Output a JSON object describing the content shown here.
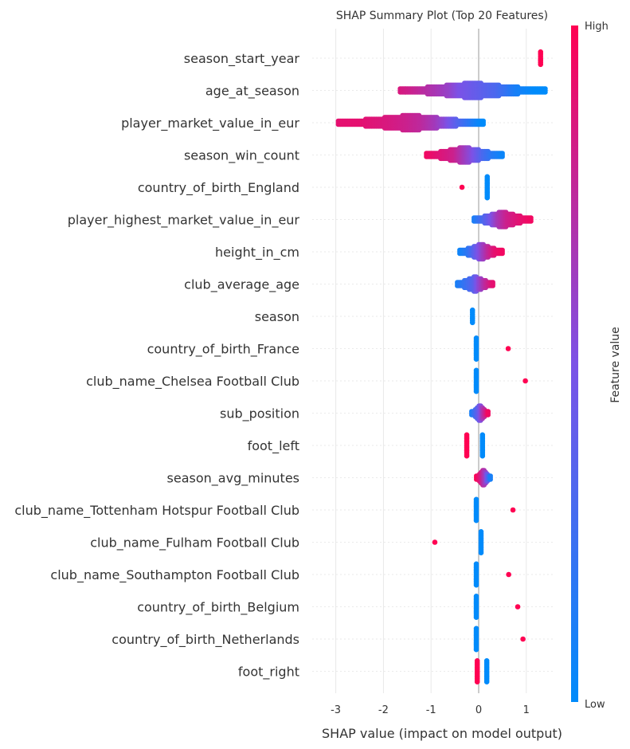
{
  "chart_data": {
    "type": "scatter",
    "title": "SHAP Summary Plot (Top 20 Features)",
    "xlabel": "SHAP value (impact on model output)",
    "xlim": [
      -3.2,
      1.6
    ],
    "xticks": [
      -3,
      -2,
      -1,
      0,
      1
    ],
    "colorbar": {
      "label": "Feature value",
      "high": "High",
      "low": "Low",
      "high_color": "#ff0052",
      "low_color": "#008bfb"
    },
    "features": [
      {
        "name": "season_start_year",
        "points": [
          [
            1.3,
            1.0
          ]
        ]
      },
      {
        "name": "age_at_season",
        "points": [
          [
            -1.65,
            0.85
          ],
          [
            -1.4,
            0.8
          ],
          [
            -1.2,
            0.75
          ],
          [
            -1.0,
            0.7
          ],
          [
            -0.8,
            0.65
          ],
          [
            -0.6,
            0.6
          ],
          [
            -0.4,
            0.5
          ],
          [
            -0.2,
            0.45
          ],
          [
            0.0,
            0.4
          ],
          [
            0.2,
            0.35
          ],
          [
            0.4,
            0.3
          ],
          [
            0.6,
            0.2
          ],
          [
            0.8,
            0.1
          ],
          [
            1.0,
            0.05
          ],
          [
            1.2,
            0.0
          ],
          [
            1.4,
            0.0
          ]
        ]
      },
      {
        "name": "player_market_value_in_eur",
        "points": [
          [
            -2.95,
            0.9
          ],
          [
            -2.5,
            0.9
          ],
          [
            -1.9,
            0.85
          ],
          [
            -1.5,
            0.8
          ],
          [
            -1.2,
            0.75
          ],
          [
            -0.9,
            0.65
          ],
          [
            -0.7,
            0.55
          ],
          [
            -0.5,
            0.4
          ],
          [
            -0.3,
            0.25
          ],
          [
            -0.15,
            0.15
          ],
          [
            0.0,
            0.05
          ],
          [
            0.1,
            0.0
          ]
        ]
      },
      {
        "name": "season_win_count",
        "points": [
          [
            -1.1,
            0.95
          ],
          [
            -0.9,
            0.9
          ],
          [
            -0.7,
            0.85
          ],
          [
            -0.5,
            0.8
          ],
          [
            -0.3,
            0.65
          ],
          [
            -0.1,
            0.5
          ],
          [
            0.1,
            0.3
          ],
          [
            0.3,
            0.15
          ],
          [
            0.5,
            0.05
          ]
        ]
      },
      {
        "name": "country_of_birth_England",
        "points": [
          [
            -0.35,
            1.0
          ],
          [
            0.18,
            0.0
          ]
        ]
      },
      {
        "name": "player_highest_market_value_in_eur",
        "points": [
          [
            -0.1,
            0.1
          ],
          [
            0.0,
            0.2
          ],
          [
            0.2,
            0.4
          ],
          [
            0.4,
            0.65
          ],
          [
            0.6,
            0.8
          ],
          [
            0.9,
            0.9
          ],
          [
            1.1,
            0.95
          ]
        ]
      },
      {
        "name": "height_in_cm",
        "points": [
          [
            -0.4,
            0.05
          ],
          [
            -0.2,
            0.2
          ],
          [
            0.0,
            0.5
          ],
          [
            0.2,
            0.75
          ],
          [
            0.35,
            0.9
          ],
          [
            0.5,
            0.95
          ]
        ]
      },
      {
        "name": "club_average_age",
        "points": [
          [
            -0.45,
            0.1
          ],
          [
            -0.3,
            0.2
          ],
          [
            -0.1,
            0.35
          ],
          [
            0.0,
            0.55
          ],
          [
            0.15,
            0.75
          ],
          [
            0.3,
            0.9
          ]
        ]
      },
      {
        "name": "season",
        "points": [
          [
            -0.13,
            0.0
          ]
        ]
      },
      {
        "name": "country_of_birth_France",
        "points": [
          [
            -0.05,
            0.0
          ],
          [
            0.62,
            1.0
          ]
        ]
      },
      {
        "name": "club_name_Chelsea Football Club",
        "points": [
          [
            -0.05,
            0.0
          ],
          [
            0.98,
            1.0
          ]
        ]
      },
      {
        "name": "sub_position",
        "points": [
          [
            -0.15,
            0.1
          ],
          [
            0.0,
            0.4
          ],
          [
            0.1,
            0.7
          ],
          [
            0.2,
            0.95
          ]
        ]
      },
      {
        "name": "foot_left",
        "points": [
          [
            -0.25,
            1.0
          ],
          [
            0.08,
            0.0
          ]
        ]
      },
      {
        "name": "season_avg_minutes",
        "points": [
          [
            -0.05,
            1.0
          ],
          [
            0.05,
            0.85
          ],
          [
            0.15,
            0.6
          ],
          [
            0.25,
            0.1
          ]
        ]
      },
      {
        "name": "club_name_Tottenham Hotspur Football Club",
        "points": [
          [
            -0.05,
            0.0
          ],
          [
            0.72,
            1.0
          ]
        ]
      },
      {
        "name": "club_name_Fulham Football Club",
        "points": [
          [
            -0.92,
            1.0
          ],
          [
            0.05,
            0.0
          ]
        ]
      },
      {
        "name": "club_name_Southampton Football Club",
        "points": [
          [
            -0.05,
            0.0
          ],
          [
            0.63,
            1.0
          ]
        ]
      },
      {
        "name": "country_of_birth_Belgium",
        "points": [
          [
            -0.05,
            0.0
          ],
          [
            0.82,
            1.0
          ]
        ]
      },
      {
        "name": "country_of_birth_Netherlands",
        "points": [
          [
            -0.05,
            0.0
          ],
          [
            0.93,
            1.0
          ]
        ]
      },
      {
        "name": "foot_right",
        "points": [
          [
            -0.03,
            1.0
          ],
          [
            0.17,
            0.0
          ]
        ]
      }
    ]
  }
}
